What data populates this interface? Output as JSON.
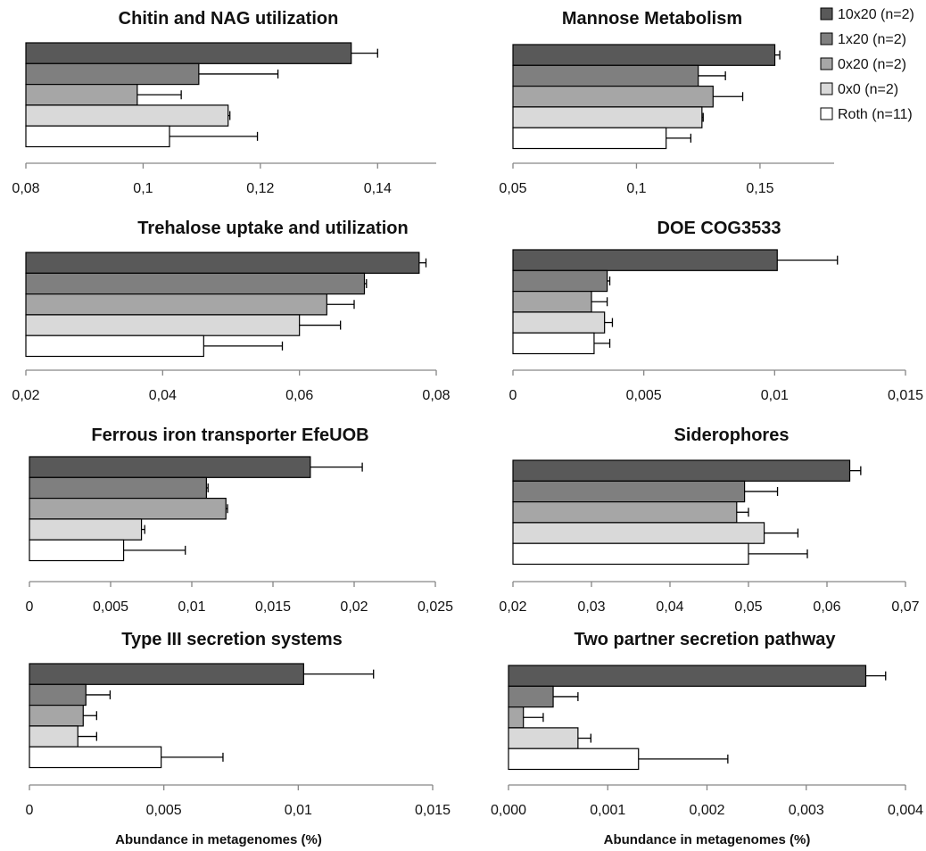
{
  "chart_data": [
    {
      "type": "bar",
      "orientation": "horizontal",
      "title": "Chitin and NAG utilization",
      "xlabel": "",
      "xlim": [
        0.08,
        0.15
      ],
      "ticks": [
        "0,08",
        "0,1",
        "0,12",
        "0,14"
      ],
      "tick_values": [
        0.08,
        0.1,
        0.12,
        0.14
      ],
      "series": [
        {
          "name": "10x20 (n=2)",
          "value": 0.1355,
          "error": 0.0045
        },
        {
          "name": "1x20 (n=2)",
          "value": 0.1095,
          "error": 0.0135
        },
        {
          "name": "0x20 (n=2)",
          "value": 0.099,
          "error": 0.0075
        },
        {
          "name": "0x0 (n=2)",
          "value": 0.1145,
          "error": 0.0003
        },
        {
          "name": "Roth (n=11)",
          "value": 0.1045,
          "error": 0.015
        }
      ]
    },
    {
      "type": "bar",
      "orientation": "horizontal",
      "title": "Mannose Metabolism",
      "xlabel": "",
      "xlim": [
        0.05,
        0.18
      ],
      "ticks": [
        "0,05",
        "0,1",
        "0,15"
      ],
      "tick_values": [
        0.05,
        0.1,
        0.15
      ],
      "series": [
        {
          "name": "10x20 (n=2)",
          "value": 0.156,
          "error": 0.002
        },
        {
          "name": "1x20 (n=2)",
          "value": 0.125,
          "error": 0.011
        },
        {
          "name": "0x20 (n=2)",
          "value": 0.131,
          "error": 0.012
        },
        {
          "name": "0x0 (n=2)",
          "value": 0.1265,
          "error": 0.0005
        },
        {
          "name": "Roth (n=11)",
          "value": 0.112,
          "error": 0.01
        }
      ]
    },
    {
      "type": "bar",
      "orientation": "horizontal",
      "title": "Trehalose uptake and utilization",
      "xlabel": "",
      "xlim": [
        0.02,
        0.08
      ],
      "ticks": [
        "0,02",
        "0,04",
        "0,06",
        "0,08"
      ],
      "tick_values": [
        0.02,
        0.04,
        0.06,
        0.08
      ],
      "series": [
        {
          "name": "10x20 (n=2)",
          "value": 0.0775,
          "error": 0.001
        },
        {
          "name": "1x20 (n=2)",
          "value": 0.0695,
          "error": 0.0003
        },
        {
          "name": "0x20 (n=2)",
          "value": 0.064,
          "error": 0.004
        },
        {
          "name": "0x0 (n=2)",
          "value": 0.06,
          "error": 0.006
        },
        {
          "name": "Roth (n=11)",
          "value": 0.046,
          "error": 0.0115
        }
      ]
    },
    {
      "type": "bar",
      "orientation": "horizontal",
      "title": "DOE COG3533",
      "xlabel": "",
      "xlim": [
        0,
        0.015
      ],
      "ticks": [
        "0",
        "0,005",
        "0,01",
        "0,015"
      ],
      "tick_values": [
        0,
        0.005,
        0.01,
        0.015
      ],
      "series": [
        {
          "name": "10x20 (n=2)",
          "value": 0.0101,
          "error": 0.0023
        },
        {
          "name": "1x20 (n=2)",
          "value": 0.0036,
          "error": 0.0001
        },
        {
          "name": "0x20 (n=2)",
          "value": 0.003,
          "error": 0.0006
        },
        {
          "name": "0x0 (n=2)",
          "value": 0.0035,
          "error": 0.0003
        },
        {
          "name": "Roth (n=11)",
          "value": 0.0031,
          "error": 0.0006
        }
      ]
    },
    {
      "type": "bar",
      "orientation": "horizontal",
      "title": "Ferrous iron transporter EfeUOB",
      "xlabel": "",
      "xlim": [
        0,
        0.025
      ],
      "ticks": [
        "0",
        "0,005",
        "0,01",
        "0,015",
        "0,02",
        "0,025"
      ],
      "tick_values": [
        0,
        0.005,
        0.01,
        0.015,
        0.02,
        0.025
      ],
      "series": [
        {
          "name": "10x20 (n=2)",
          "value": 0.0173,
          "error": 0.0032
        },
        {
          "name": "1x20 (n=2)",
          "value": 0.0109,
          "error": 0.0001
        },
        {
          "name": "0x20 (n=2)",
          "value": 0.0121,
          "error": 0.0001
        },
        {
          "name": "0x0 (n=2)",
          "value": 0.0069,
          "error": 0.0002
        },
        {
          "name": "Roth (n=11)",
          "value": 0.0058,
          "error": 0.0038
        }
      ]
    },
    {
      "type": "bar",
      "orientation": "horizontal",
      "title": "Siderophores",
      "xlabel": "",
      "xlim": [
        0.02,
        0.07
      ],
      "ticks": [
        "0,02",
        "0,03",
        "0,04",
        "0,05",
        "0,06",
        "0,07"
      ],
      "tick_values": [
        0.02,
        0.03,
        0.04,
        0.05,
        0.06,
        0.07
      ],
      "series": [
        {
          "name": "10x20 (n=2)",
          "value": 0.0629,
          "error": 0.0014
        },
        {
          "name": "1x20 (n=2)",
          "value": 0.0495,
          "error": 0.0042
        },
        {
          "name": "0x20 (n=2)",
          "value": 0.0485,
          "error": 0.0015
        },
        {
          "name": "0x0 (n=2)",
          "value": 0.052,
          "error": 0.0043
        },
        {
          "name": "Roth (n=11)",
          "value": 0.05,
          "error": 0.0075
        }
      ]
    },
    {
      "type": "bar",
      "orientation": "horizontal",
      "title": "Type III secretion systems",
      "xlabel": "Abundance in metagenomes (%)",
      "xlim": [
        0,
        0.015
      ],
      "ticks": [
        "0",
        "0,005",
        "0,01",
        "0,015"
      ],
      "tick_values": [
        0,
        0.005,
        0.01,
        0.015
      ],
      "series": [
        {
          "name": "10x20 (n=2)",
          "value": 0.0102,
          "error": 0.0026
        },
        {
          "name": "1x20 (n=2)",
          "value": 0.0021,
          "error": 0.0009
        },
        {
          "name": "0x20 (n=2)",
          "value": 0.002,
          "error": 0.0005
        },
        {
          "name": "0x0 (n=2)",
          "value": 0.0018,
          "error": 0.0007
        },
        {
          "name": "Roth (n=11)",
          "value": 0.0049,
          "error": 0.0023
        }
      ]
    },
    {
      "type": "bar",
      "orientation": "horizontal",
      "title": "Two partner secretion pathway",
      "xlabel": "Abundance in metagenomes (%)",
      "xlim": [
        0,
        0.004
      ],
      "ticks": [
        "0,000",
        "0,001",
        "0,002",
        "0,003",
        "0,004"
      ],
      "tick_values": [
        0,
        0.001,
        0.002,
        0.003,
        0.004
      ],
      "series": [
        {
          "name": "10x20 (n=2)",
          "value": 0.0036,
          "error": 0.0002
        },
        {
          "name": "1x20 (n=2)",
          "value": 0.00045,
          "error": 0.00025
        },
        {
          "name": "0x20 (n=2)",
          "value": 0.00015,
          "error": 0.0002
        },
        {
          "name": "0x0 (n=2)",
          "value": 0.0007,
          "error": 0.00013
        },
        {
          "name": "Roth (n=11)",
          "value": 0.00131,
          "error": 0.0009
        }
      ]
    }
  ],
  "legend": {
    "position": "top-right",
    "items": [
      {
        "label": "10x20 (n=2)",
        "color": "#595959"
      },
      {
        "label": "1x20 (n=2)",
        "color": "#7f7f7f"
      },
      {
        "label": "0x20 (n=2)",
        "color": "#a6a6a6"
      },
      {
        "label": "0x0 (n=2)",
        "color": "#d9d9d9"
      },
      {
        "label": "Roth (n=11)",
        "color": "#ffffff"
      }
    ]
  }
}
